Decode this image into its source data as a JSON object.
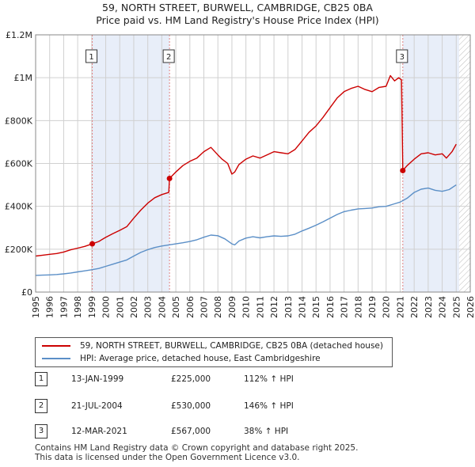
{
  "title_line1": "59, NORTH STREET, BURWELL, CAMBRIDGE, CB25 0BA",
  "title_line2": "Price paid vs. HM Land Registry's House Price Index (HPI)",
  "colors": {
    "property": "#cc0000",
    "hpi": "#5b8fc7",
    "shade": "#e8eef9",
    "grid": "#d0d0d0",
    "vline": "#e08080",
    "hatch": "#bbbbbb"
  },
  "chart_data": {
    "type": "line",
    "title": "59, NORTH STREET, BURWELL, CAMBRIDGE, CB25 0BA — Price paid vs. HM Land Registry's House Price Index (HPI)",
    "xlabel": "",
    "ylabel": "",
    "xlim": [
      1995,
      2026
    ],
    "ylim": [
      0,
      1200000
    ],
    "x_ticks": [
      "1995",
      "1996",
      "1997",
      "1998",
      "1999",
      "2000",
      "2001",
      "2002",
      "2003",
      "2004",
      "2005",
      "2006",
      "2007",
      "2008",
      "2009",
      "2010",
      "2011",
      "2012",
      "2013",
      "2014",
      "2015",
      "2016",
      "2017",
      "2018",
      "2019",
      "2020",
      "2021",
      "2022",
      "2023",
      "2024",
      "2025",
      "2026"
    ],
    "y_ticks": [
      {
        "value": 0,
        "label": "£0"
      },
      {
        "value": 200000,
        "label": "£200K"
      },
      {
        "value": 400000,
        "label": "£400K"
      },
      {
        "value": 600000,
        "label": "£600K"
      },
      {
        "value": 800000,
        "label": "£800K"
      },
      {
        "value": 1000000,
        "label": "£1M"
      },
      {
        "value": 1200000,
        "label": "£1.2M"
      }
    ],
    "grid": true,
    "shaded_ranges": [
      [
        1999.04,
        2004.55
      ],
      [
        2021.19,
        2025.2
      ]
    ],
    "hatched_range": [
      2025.2,
      2026
    ],
    "series": [
      {
        "name": "59, NORTH STREET, BURWELL, CAMBRIDGE, CB25 0BA (detached house)",
        "x": [
          1995,
          1995.5,
          1996,
          1996.5,
          1997,
          1997.5,
          1998,
          1998.5,
          1999.04,
          1999.5,
          2000,
          2000.5,
          2001,
          2001.5,
          2002,
          2002.5,
          2003,
          2003.5,
          2004,
          2004.5,
          2004.55,
          2005,
          2005.5,
          2006,
          2006.5,
          2007,
          2007.5,
          2008,
          2008.3,
          2008.7,
          2009,
          2009.2,
          2009.5,
          2010,
          2010.5,
          2011,
          2011.5,
          2012,
          2012.5,
          2013,
          2013.5,
          2014,
          2014.5,
          2015,
          2015.5,
          2016,
          2016.5,
          2017,
          2017.5,
          2018,
          2018.5,
          2019,
          2019.5,
          2020,
          2020.3,
          2020.6,
          2020.9,
          2021.1,
          2021.19,
          2021.5,
          2022,
          2022.5,
          2023,
          2023.5,
          2024,
          2024.3,
          2024.7,
          2025
        ],
        "y": [
          168000,
          172000,
          176000,
          180000,
          187000,
          197000,
          205000,
          213000,
          225000,
          236000,
          255000,
          272000,
          288000,
          305000,
          345000,
          382000,
          415000,
          440000,
          455000,
          465000,
          530000,
          560000,
          590000,
          610000,
          625000,
          655000,
          675000,
          640000,
          620000,
          600000,
          550000,
          560000,
          595000,
          620000,
          635000,
          625000,
          640000,
          655000,
          650000,
          645000,
          665000,
          705000,
          745000,
          775000,
          815000,
          860000,
          905000,
          935000,
          950000,
          960000,
          945000,
          935000,
          955000,
          960000,
          1010000,
          985000,
          1000000,
          990000,
          567000,
          590000,
          620000,
          645000,
          650000,
          640000,
          645000,
          625000,
          655000,
          690000
        ]
      },
      {
        "name": "HPI: Average price, detached house, East Cambridgeshire",
        "x": [
          1995,
          1995.5,
          1996,
          1996.5,
          1997,
          1997.5,
          1998,
          1998.5,
          1999,
          1999.5,
          2000,
          2000.5,
          2001,
          2001.5,
          2002,
          2002.5,
          2003,
          2003.5,
          2004,
          2004.5,
          2005,
          2005.5,
          2006,
          2006.5,
          2007,
          2007.5,
          2008,
          2008.5,
          2009,
          2009.2,
          2009.5,
          2010,
          2010.5,
          2011,
          2011.5,
          2012,
          2012.5,
          2013,
          2013.5,
          2014,
          2014.5,
          2015,
          2015.5,
          2016,
          2016.5,
          2017,
          2017.5,
          2018,
          2018.5,
          2019,
          2019.5,
          2020,
          2020.5,
          2021,
          2021.5,
          2022,
          2022.5,
          2023,
          2023.5,
          2024,
          2024.5,
          2025
        ],
        "y": [
          78000,
          79000,
          80000,
          82000,
          85000,
          89000,
          94000,
          99000,
          104000,
          110000,
          120000,
          130000,
          140000,
          150000,
          168000,
          185000,
          198000,
          208000,
          215000,
          220000,
          225000,
          230000,
          236000,
          244000,
          256000,
          266000,
          263000,
          248000,
          225000,
          220000,
          238000,
          252000,
          258000,
          253000,
          258000,
          262000,
          260000,
          262000,
          270000,
          285000,
          298000,
          312000,
          328000,
          345000,
          362000,
          375000,
          382000,
          388000,
          390000,
          392000,
          398000,
          400000,
          410000,
          420000,
          438000,
          465000,
          480000,
          485000,
          475000,
          470000,
          478000,
          500000
        ]
      }
    ],
    "sales_markers": [
      {
        "label": "1",
        "x": 1999.04,
        "y": 225000
      },
      {
        "label": "2",
        "x": 2004.55,
        "y": 530000
      },
      {
        "label": "3",
        "x": 2021.19,
        "y": 567000
      }
    ]
  },
  "legend": {
    "property_label": "59, NORTH STREET, BURWELL, CAMBRIDGE, CB25 0BA (detached house)",
    "hpi_label": "HPI: Average price, detached house, East Cambridgeshire"
  },
  "sales": [
    {
      "num": "1",
      "date": "13-JAN-1999",
      "price": "£225,000",
      "hpi": "112% ↑ HPI"
    },
    {
      "num": "2",
      "date": "21-JUL-2004",
      "price": "£530,000",
      "hpi": "146% ↑ HPI"
    },
    {
      "num": "3",
      "date": "12-MAR-2021",
      "price": "£567,000",
      "hpi": "38% ↑ HPI"
    }
  ],
  "footer_line1": "Contains HM Land Registry data © Crown copyright and database right 2025.",
  "footer_line2": "This data is licensed under the Open Government Licence v3.0."
}
